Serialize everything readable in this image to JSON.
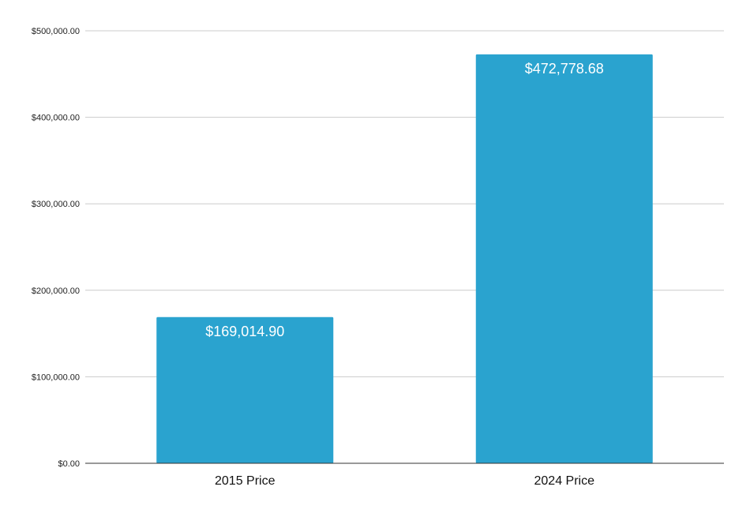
{
  "chart_data": {
    "type": "bar",
    "categories": [
      "2015 Price",
      "2024 Price"
    ],
    "values": [
      169014.9,
      472778.68
    ],
    "data_labels": [
      "$169,014.90",
      "$472,778.68"
    ],
    "ylim": [
      0,
      500000
    ],
    "y_ticks": [
      0,
      100000,
      200000,
      300000,
      400000,
      500000
    ],
    "y_tick_labels": [
      "$0.00",
      "$100,000.00",
      "$200,000.00",
      "$300,000.00",
      "$400,000.00",
      "$500,000.00"
    ],
    "title": "",
    "xlabel": "",
    "ylabel": "",
    "grid": true,
    "legend": false,
    "bar_color": "#2aa3cf"
  }
}
